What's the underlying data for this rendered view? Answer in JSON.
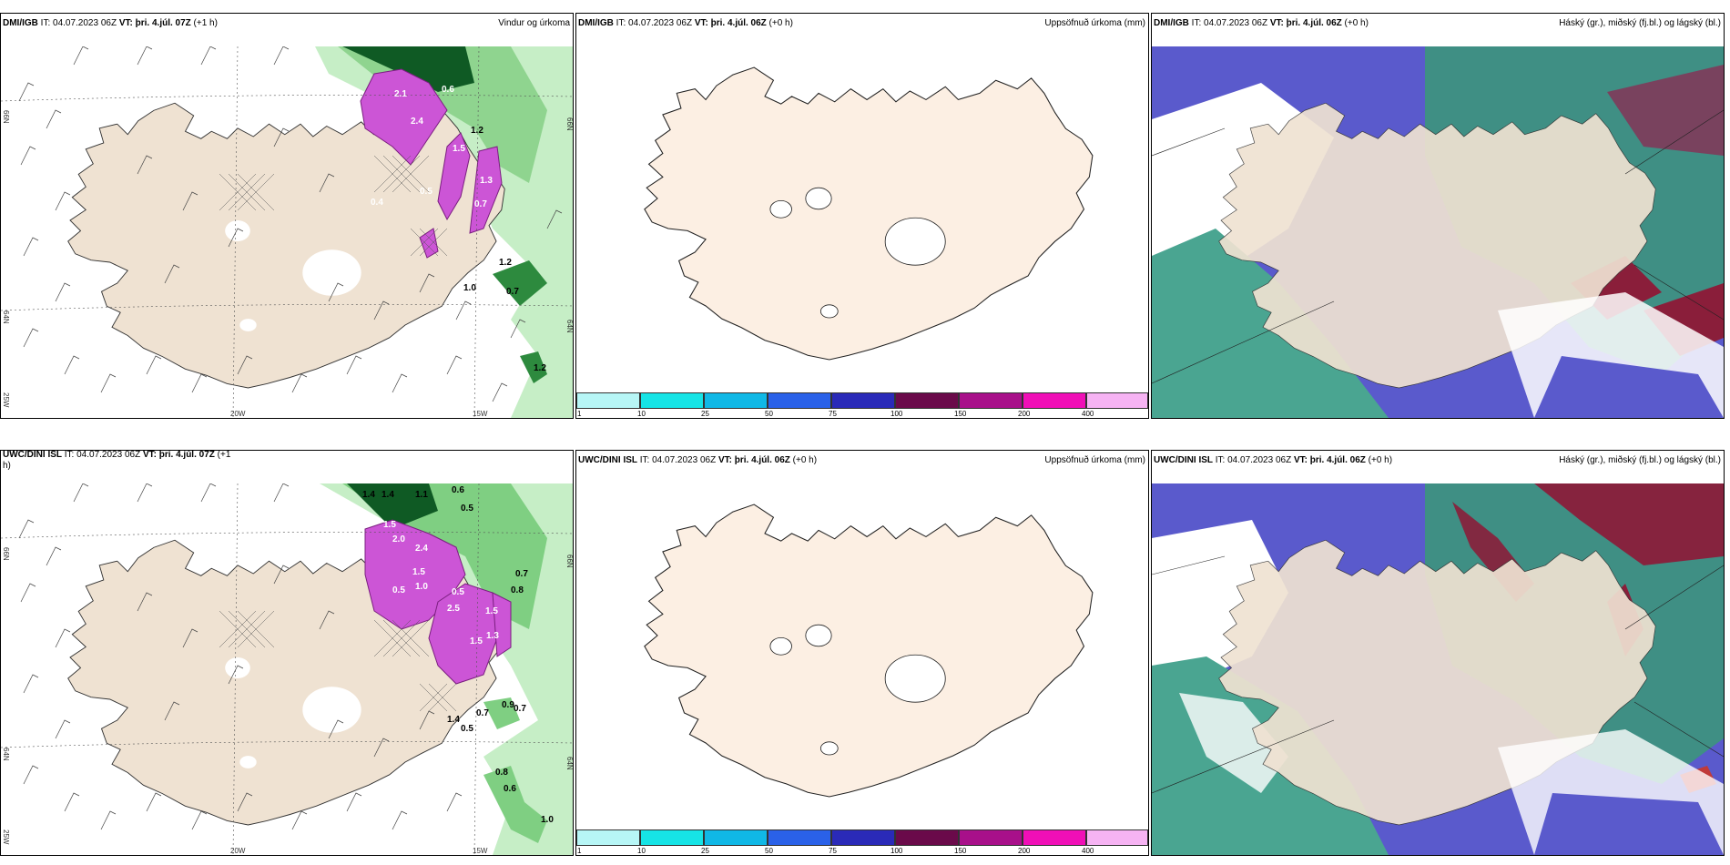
{
  "panels": {
    "tl": {
      "left_bold": "DMI/IGB",
      "it": "IT: 04.07.2023 06Z",
      "vt_bold": "VT: þri. 4.júl. 07Z",
      "lead": "(+1 h)",
      "right": "Vindur og úrkoma"
    },
    "tm": {
      "left_bold": "DMI/IGB",
      "it": "IT: 04.07.2023 06Z",
      "vt_bold": "VT: þri. 4.júl. 06Z",
      "lead": "(+0 h)",
      "right": "Uppsöfnuð úrkoma (mm)"
    },
    "tr": {
      "left_bold": "DMI/IGB",
      "it": "IT: 04.07.2023 06Z",
      "vt_bold": "VT: þri. 4.júl. 06Z",
      "lead": "(+0 h)",
      "right": "Háský (gr.), miðský (fj.bl.) og lágský (bl.)"
    },
    "bl": {
      "left_bold": "UWC/DINI ISL",
      "it": "IT: 04.07.2023 06Z",
      "vt_bold": "VT: þri. 4.júl. 07Z",
      "lead": "(+1",
      "lead2": "h)",
      "right": ""
    },
    "bm": {
      "left_bold": "UWC/DINI ISL",
      "it": "IT: 04.07.2023 06Z",
      "vt_bold": "VT: þri. 4.júl. 06Z",
      "lead": "(+0 h)",
      "right": "Uppsöfnuð úrkoma (mm)"
    },
    "br": {
      "left_bold": "UWC/DINI ISL",
      "it": "IT: 04.07.2023 06Z",
      "vt_bold": "VT: þri. 4.júl. 06Z",
      "lead": "(+0 h)",
      "right": "Háský (gr.), miðský (fj.bl.) og lágský (bl.)"
    }
  },
  "axes": {
    "lat_66": "66N",
    "lat_64": "64N",
    "lat_25w": "25W",
    "lon_20w": "20W",
    "lon_15w": "15W"
  },
  "colorbar": {
    "labels": [
      "1",
      "10",
      "25",
      "50",
      "75",
      "100",
      "150",
      "200",
      "400"
    ],
    "colors": [
      "#b7f6f6",
      "#16e4e6",
      "#10b8e6",
      "#2a61e8",
      "#2a2ab8",
      "#6a0a4a",
      "#a8108a",
      "#f00fb7",
      "#f6b3f3"
    ]
  },
  "precip_labels_top": [
    "2.1",
    "2.4",
    "0.6",
    "1.2",
    "1.5",
    "0.5",
    "1.3",
    "0.7",
    "0.4",
    "1.2",
    "1.0",
    "0.7",
    "1.2"
  ],
  "precip_labels_bottom": [
    "1.4",
    "1.4",
    "1.1",
    "0.6",
    "0.5",
    "1.5",
    "2.0",
    "2.4",
    "1.5",
    "1.0",
    "0.5",
    "0.5",
    "2.5",
    "1.5",
    "0.8",
    "1.3",
    "1.5",
    "0.7",
    "1.4",
    "0.5",
    "0.7",
    "0.9",
    "0.7",
    "0.8",
    "0.6",
    "1.0"
  ],
  "colors": {
    "land": "#efe2d2",
    "land_white": "#fcefe3",
    "precip_light": "#c6eec6",
    "precip_mid": "#5fb36a",
    "precip_dark": "#0f5a24",
    "precip_magenta": "#cc55d6",
    "cloud_blue": "#5a5acc",
    "cloud_green": "#4aa591"
  }
}
